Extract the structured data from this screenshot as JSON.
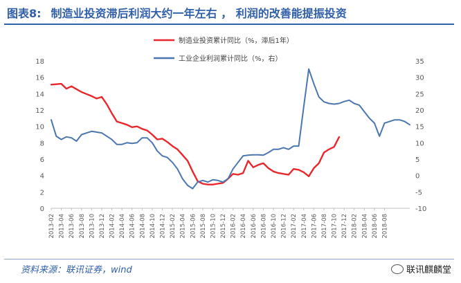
{
  "header": {
    "label": "图表8:",
    "title": "制造业投资滞后利润大约一年左右 ， 利润的改善能提振投资"
  },
  "footer": {
    "source": "资料来源：联讯证券，wind",
    "watermark": "联讯麒麟堂"
  },
  "chart_data": {
    "type": "line",
    "x_ticks": [
      "2013-02",
      "2013-04",
      "2013-06",
      "2013-08",
      "2013-10",
      "2013-12",
      "2014-02",
      "2014-04",
      "2014-06",
      "2014-08",
      "2014-10",
      "2014-12",
      "2015-02",
      "2015-04",
      "2015-06",
      "2015-08",
      "2015-10",
      "2015-12",
      "2016-02",
      "2016-04",
      "2016-06",
      "2016-08",
      "2016-10",
      "2016-12",
      "2017-02",
      "2017-04",
      "2017-06",
      "2017-08",
      "2017-10",
      "2017-12",
      "2018-02",
      "2018-04",
      "2018-06",
      "2018-08"
    ],
    "left_axis": {
      "ylim": [
        0,
        18
      ],
      "ticks": [
        "0",
        "2",
        "4",
        "6",
        "8",
        "10",
        "12",
        "14",
        "16",
        "18"
      ]
    },
    "right_axis": {
      "ylim": [
        -10,
        35
      ],
      "ticks": [
        "-10",
        "-5",
        "0",
        "5",
        "10",
        "15",
        "20",
        "25",
        "30",
        "35"
      ]
    },
    "grid": false,
    "series": [
      {
        "name": "制造业投资累计同比（%，滞后1年）",
        "axis": "left",
        "color": "#e8262b",
        "points": [
          [
            0,
            15.1
          ],
          [
            2,
            15.2
          ],
          [
            3,
            14.6
          ],
          [
            4,
            14.9
          ],
          [
            6,
            14.2
          ],
          [
            8,
            13.7
          ],
          [
            9,
            13.4
          ],
          [
            10,
            13.6
          ],
          [
            11,
            12.7
          ],
          [
            12,
            11.6
          ],
          [
            13,
            10.6
          ],
          [
            14,
            10.4
          ],
          [
            15,
            10.2
          ],
          [
            16,
            9.9
          ],
          [
            17,
            10.0
          ],
          [
            18,
            9.7
          ],
          [
            19,
            9.5
          ],
          [
            20,
            9.0
          ],
          [
            21,
            8.4
          ],
          [
            22,
            8.5
          ],
          [
            23,
            8.1
          ],
          [
            24,
            7.6
          ],
          [
            25,
            7.2
          ],
          [
            26,
            6.5
          ],
          [
            27,
            5.8
          ],
          [
            28,
            4.5
          ],
          [
            29,
            3.3
          ],
          [
            30,
            3.0
          ],
          [
            31,
            2.9
          ],
          [
            32,
            2.9
          ],
          [
            33,
            3.0
          ],
          [
            34,
            3.1
          ],
          [
            35,
            3.6
          ],
          [
            36,
            4.2
          ],
          [
            37,
            4.1
          ],
          [
            38,
            4.3
          ],
          [
            39,
            5.8
          ],
          [
            40,
            5.0
          ],
          [
            41,
            5.3
          ],
          [
            42,
            5.5
          ],
          [
            43,
            4.9
          ],
          [
            44,
            4.5
          ],
          [
            45,
            4.3
          ],
          [
            46,
            4.2
          ],
          [
            47,
            4.1
          ],
          [
            48,
            4.8
          ],
          [
            49,
            4.7
          ],
          [
            50,
            4.4
          ],
          [
            51,
            3.9
          ],
          [
            52,
            4.9
          ],
          [
            53,
            5.5
          ],
          [
            54,
            6.8
          ],
          [
            55,
            7.2
          ],
          [
            56,
            7.5
          ],
          [
            57,
            8.7
          ]
        ]
      },
      {
        "name": "工业企业利润累计同比（%，右）",
        "axis": "right",
        "color": "#4a76b0",
        "points": [
          [
            0,
            17.0
          ],
          [
            1,
            12.0
          ],
          [
            2,
            11.0
          ],
          [
            3,
            11.8
          ],
          [
            4,
            11.5
          ],
          [
            5,
            10.5
          ],
          [
            6,
            12.5
          ],
          [
            8,
            13.5
          ],
          [
            10,
            13.0
          ],
          [
            12,
            11.0
          ],
          [
            13,
            9.5
          ],
          [
            14,
            9.5
          ],
          [
            15,
            10.0
          ],
          [
            16,
            9.8
          ],
          [
            17,
            10.0
          ],
          [
            18,
            11.5
          ],
          [
            19,
            11.5
          ],
          [
            20,
            10.0
          ],
          [
            21,
            7.5
          ],
          [
            22,
            6.0
          ],
          [
            23,
            5.5
          ],
          [
            24,
            4.0
          ],
          [
            25,
            2.0
          ],
          [
            26,
            -1.0
          ],
          [
            27,
            -3.0
          ],
          [
            28,
            -4.0
          ],
          [
            29,
            -2.0
          ],
          [
            30,
            -1.5
          ],
          [
            31,
            -2.0
          ],
          [
            32,
            -1.3
          ],
          [
            33,
            -1.5
          ],
          [
            34,
            -2.0
          ],
          [
            35,
            -1.0
          ],
          [
            36,
            2.0
          ],
          [
            37,
            4.0
          ],
          [
            38,
            6.0
          ],
          [
            39,
            6.2
          ],
          [
            40,
            6.3
          ],
          [
            41,
            6.3
          ],
          [
            42,
            6.2
          ],
          [
            43,
            7.0
          ],
          [
            44,
            8.0
          ],
          [
            45,
            8.0
          ],
          [
            46,
            8.5
          ],
          [
            47,
            8.0
          ],
          [
            48,
            9.0
          ],
          [
            49,
            9.0
          ],
          [
            50,
            21.0
          ],
          [
            51,
            32.5
          ],
          [
            52,
            28.0
          ],
          [
            53,
            24.0
          ],
          [
            54,
            22.5
          ],
          [
            55,
            22.0
          ],
          [
            56,
            21.8
          ],
          [
            57,
            22.0
          ],
          [
            58,
            22.6
          ],
          [
            59,
            23.0
          ],
          [
            60,
            22.0
          ],
          [
            61,
            21.5
          ],
          [
            62,
            19.5
          ],
          [
            63,
            17.5
          ],
          [
            64,
            16.0
          ],
          [
            65,
            12.0
          ],
          [
            66,
            16.0
          ],
          [
            67,
            16.5
          ],
          [
            68,
            17.0
          ],
          [
            69,
            17.0
          ],
          [
            70,
            16.5
          ],
          [
            71,
            15.5
          ]
        ]
      }
    ]
  }
}
